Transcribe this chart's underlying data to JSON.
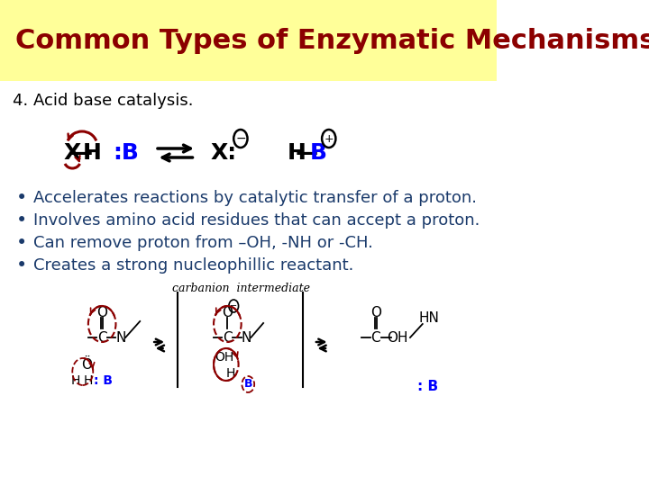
{
  "title": "Common Types of Enzymatic Mechanisms",
  "title_color": "#8B0000",
  "title_bg": "#FFFF99",
  "slide_bg": "#FFFFFF",
  "subtitle": "4. Acid base catalysis.",
  "subtitle_color": "#000000",
  "bullets": [
    "Accelerates reactions by catalytic transfer of a proton.",
    "Involves amino acid residues that can accept a proton.",
    "Can remove proton from –OH, -NH or -CH.",
    "Creates a strong nucleophillic reactant."
  ],
  "bullet_color": "#1a3a6b",
  "diagram_label": "carbanion  intermediate",
  "title_fontsize": 22,
  "subtitle_fontsize": 13,
  "bullet_fontsize": 13
}
